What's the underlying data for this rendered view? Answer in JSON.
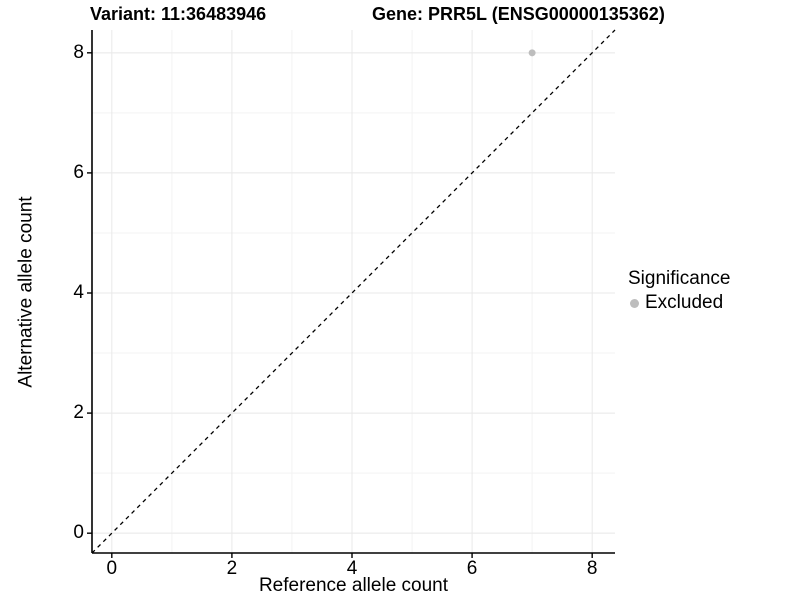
{
  "figure": {
    "title_left": "Variant: 11:36483946",
    "title_right": "Gene: PRR5L (ENSG00000135362)"
  },
  "chart_data": {
    "type": "scatter",
    "title": "Variant: 11:36483946   Gene: PRR5L (ENSG00000135362)",
    "xlabel": "Reference allele count",
    "ylabel": "Alternative allele count",
    "xlim": [
      -0.33,
      8.38
    ],
    "ylim": [
      -0.33,
      8.38
    ],
    "x_ticks": [
      0,
      2,
      4,
      6,
      8
    ],
    "y_ticks": [
      0,
      2,
      4,
      6,
      8
    ],
    "x_minor_ticks": [
      1,
      3,
      5,
      7
    ],
    "y_minor_ticks": [
      1,
      3,
      5,
      7
    ],
    "grid": "on",
    "legend_position": "right",
    "series": [
      {
        "name": "Excluded",
        "color": "#BDBDBD",
        "points": [
          {
            "x": 7,
            "y": 8
          }
        ]
      }
    ],
    "reference_line": {
      "kind": "identity y=x",
      "dash": "dashed",
      "color": "#000000"
    },
    "legend": {
      "title": "Significance",
      "entries": [
        {
          "label": "Excluded",
          "color": "#BDBDBD"
        }
      ]
    }
  },
  "style": {
    "axis_color": "#000000",
    "grid_major_color": "#E8E8E8",
    "grid_minor_color": "#F3F3F3",
    "point_radius": 3.5,
    "background": "#FFFFFF"
  }
}
